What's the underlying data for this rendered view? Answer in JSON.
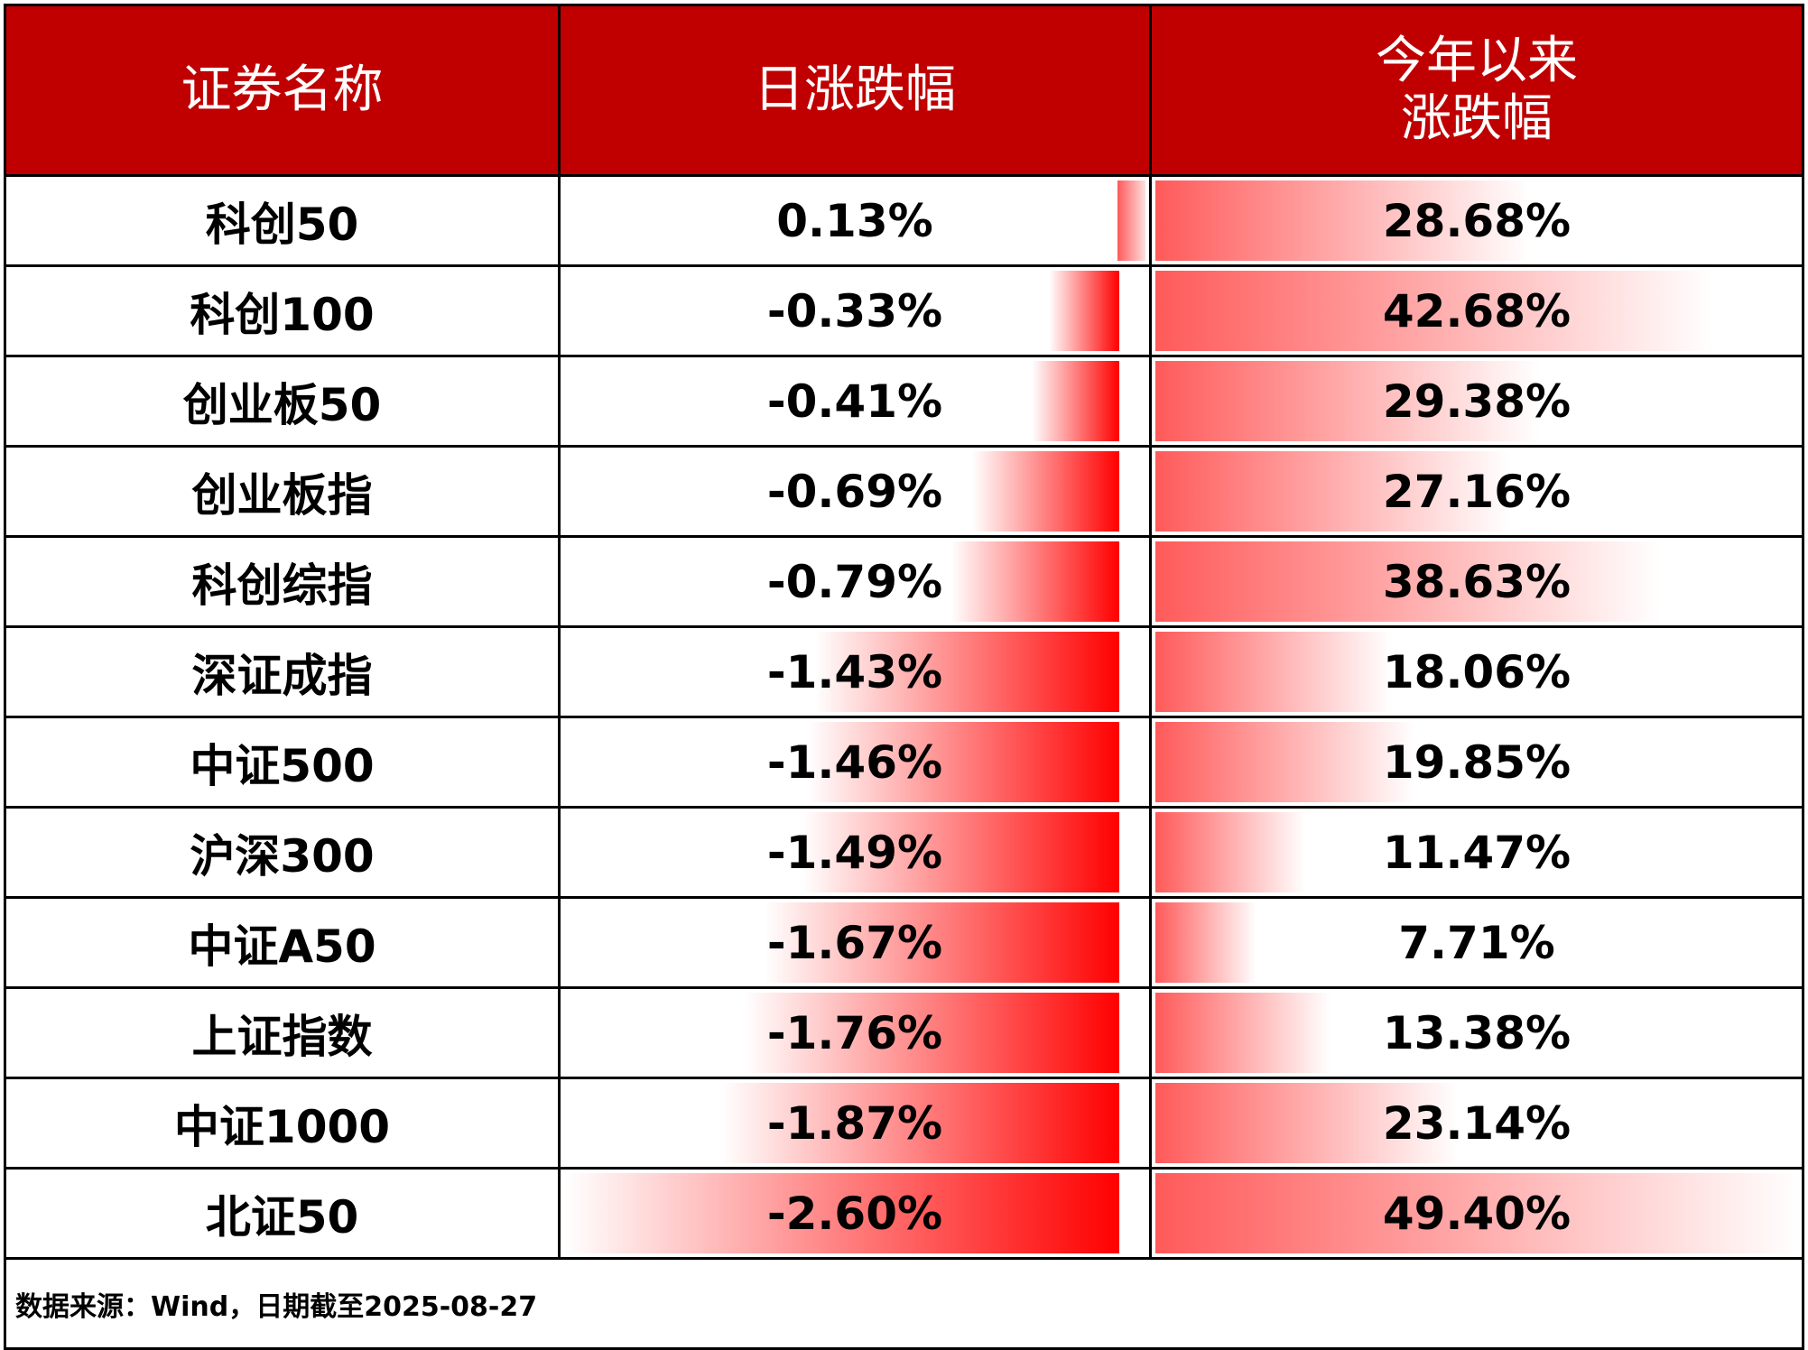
{
  "header": {
    "name": "证券名称",
    "daily": "日涨跌幅",
    "ytd_line1": "今年以来",
    "ytd_line2": "涨跌幅"
  },
  "colors": {
    "header_bg": "#c00000",
    "negative_bar": "#ff0000",
    "positive_bar": "#ff5a5a"
  },
  "rows": [
    {
      "name": "科创50",
      "daily": "0.13%",
      "daily_value": 0.13,
      "ytd": "28.68%",
      "ytd_value": 28.68
    },
    {
      "name": "科创100",
      "daily": "-0.33%",
      "daily_value": -0.33,
      "ytd": "42.68%",
      "ytd_value": 42.68
    },
    {
      "name": "创业板50",
      "daily": "-0.41%",
      "daily_value": -0.41,
      "ytd": "29.38%",
      "ytd_value": 29.38
    },
    {
      "name": "创业板指",
      "daily": "-0.69%",
      "daily_value": -0.69,
      "ytd": "27.16%",
      "ytd_value": 27.16
    },
    {
      "name": "科创综指",
      "daily": "-0.79%",
      "daily_value": -0.79,
      "ytd": "38.63%",
      "ytd_value": 38.63
    },
    {
      "name": "深证成指",
      "daily": "-1.43%",
      "daily_value": -1.43,
      "ytd": "18.06%",
      "ytd_value": 18.06
    },
    {
      "name": "中证500",
      "daily": "-1.46%",
      "daily_value": -1.46,
      "ytd": "19.85%",
      "ytd_value": 19.85
    },
    {
      "name": "沪深300",
      "daily": "-1.49%",
      "daily_value": -1.49,
      "ytd": "11.47%",
      "ytd_value": 11.47
    },
    {
      "name": "中证A50",
      "daily": "-1.67%",
      "daily_value": -1.67,
      "ytd": "7.71%",
      "ytd_value": 7.71
    },
    {
      "name": "上证指数",
      "daily": "-1.76%",
      "daily_value": -1.76,
      "ytd": "13.38%",
      "ytd_value": 13.38
    },
    {
      "name": "中证1000",
      "daily": "-1.87%",
      "daily_value": -1.87,
      "ytd": "23.14%",
      "ytd_value": 23.14
    },
    {
      "name": "北证50",
      "daily": "-2.60%",
      "daily_value": -2.6,
      "ytd": "49.40%",
      "ytd_value": 49.4
    }
  ],
  "footer": "数据来源：Wind，日期截至2025-08-27"
}
